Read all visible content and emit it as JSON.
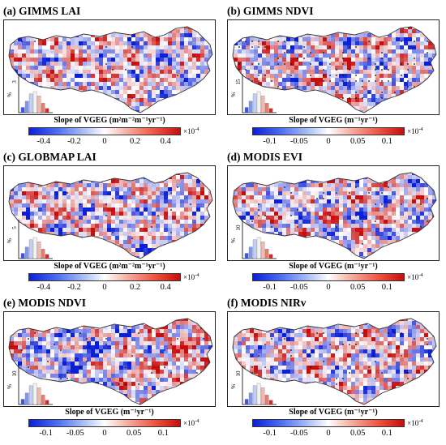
{
  "panels": [
    {
      "id": "a",
      "title": "(a) GIMMS LAI",
      "colorbar_label": "Slope of VGEG",
      "units": "(m²m⁻²m⁻¹yr⁻¹)",
      "ticks": [
        "-0.4",
        "-0.2",
        "0",
        "0.2",
        "0.4"
      ],
      "tick_values": [
        -0.4,
        -0.2,
        0,
        0.2,
        0.4
      ],
      "range": [
        -0.5,
        0.5
      ],
      "exponent": "×10",
      "exponent_power": "-4",
      "hist_ymax": "3",
      "hist_ylabel": "%",
      "stippling": "sparse",
      "colors": [
        "#0a1fd8",
        "#ffffff",
        "#c80d0d"
      ]
    },
    {
      "id": "b",
      "title": "(b) GIMMS NDVI",
      "colorbar_label": "Slope of VGEG",
      "units": "(m⁻¹yr⁻¹)",
      "ticks": [
        "-0.1",
        "-0.05",
        "0",
        "0.05",
        "0.1"
      ],
      "tick_values": [
        -0.1,
        -0.05,
        0,
        0.05,
        0.1
      ],
      "range": [
        -0.13,
        0.13
      ],
      "exponent": "×10",
      "exponent_power": "-4",
      "hist_ymax": "15",
      "hist_ylabel": "%",
      "stippling": "dense",
      "colors": [
        "#0a1fd8",
        "#ffffff",
        "#c80d0d"
      ]
    },
    {
      "id": "c",
      "title": "(c) GLOBMAP LAI",
      "colorbar_label": "Slope of VGEG",
      "units": "(m²m⁻²m⁻¹yr⁻¹)",
      "ticks": [
        "-0.4",
        "-0.2",
        "0",
        "0.2",
        "0.4"
      ],
      "tick_values": [
        -0.4,
        -0.2,
        0,
        0.2,
        0.4
      ],
      "range": [
        -0.5,
        0.5
      ],
      "exponent": "×10",
      "exponent_power": "-4",
      "hist_ymax": "5",
      "hist_ylabel": "%",
      "stippling": "sparse",
      "colors": [
        "#0a1fd8",
        "#ffffff",
        "#c80d0d"
      ]
    },
    {
      "id": "d",
      "title": "(d) MODIS EVI",
      "colorbar_label": "Slope of VGEG",
      "units": "(m⁻¹yr⁻¹)",
      "ticks": [
        "-0.1",
        "-0.05",
        "0",
        "0.05",
        "0.1"
      ],
      "tick_values": [
        -0.1,
        -0.05,
        0,
        0.05,
        0.1
      ],
      "range": [
        -0.13,
        0.13
      ],
      "exponent": "×10",
      "exponent_power": "-4",
      "hist_ymax": "10",
      "hist_ylabel": "%",
      "stippling": "moderate",
      "colors": [
        "#0a1fd8",
        "#ffffff",
        "#c80d0d"
      ]
    },
    {
      "id": "e",
      "title": "(e) MODIS NDVI",
      "colorbar_label": "Slope of VGEG",
      "units": "(m⁻¹yr⁻¹)",
      "ticks": [
        "-0.1",
        "-0.05",
        "0",
        "0.05",
        "0.1"
      ],
      "tick_values": [
        -0.1,
        -0.05,
        0,
        0.05,
        0.1
      ],
      "range": [
        -0.13,
        0.13
      ],
      "exponent": "×10",
      "exponent_power": "-4",
      "hist_ymax": "10",
      "hist_ylabel": "%",
      "stippling": "moderate",
      "colors": [
        "#0a1fd8",
        "#ffffff",
        "#c80d0d"
      ]
    },
    {
      "id": "f",
      "title": "(f) MODIS NIRv",
      "colorbar_label": "Slope of VGEG",
      "units": "(m⁻¹yr⁻¹)",
      "ticks": [
        "-0.1",
        "-0.05",
        "0",
        "0.05",
        "0.1"
      ],
      "tick_values": [
        -0.1,
        -0.05,
        0,
        0.05,
        0.1
      ],
      "range": [
        -0.13,
        0.13
      ],
      "exponent": "×10",
      "exponent_power": "-4",
      "hist_ymax": "10",
      "hist_ylabel": "%",
      "stippling": "moderate",
      "colors": [
        "#0a1fd8",
        "#ffffff",
        "#c80d0d"
      ]
    }
  ]
}
